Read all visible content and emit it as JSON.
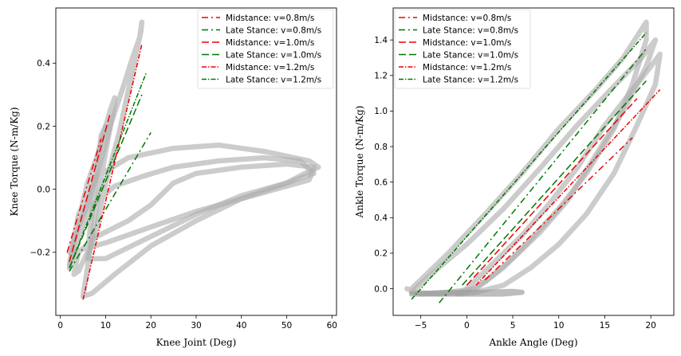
{
  "chart_data": [
    {
      "type": "line",
      "xlabel": "Knee Joint (Deg)",
      "ylabel": "Knee Torque (N-m/Kg)",
      "xlim": [
        -1,
        61
      ],
      "ylim": [
        -0.4,
        0.575
      ],
      "xticks": [
        0,
        10,
        20,
        30,
        40,
        50,
        60
      ],
      "yticks": [
        -0.2,
        0.0,
        0.2,
        0.4
      ],
      "xtick_labels": [
        "0",
        "10",
        "20",
        "30",
        "40",
        "50",
        "60"
      ],
      "ytick_labels": [
        "−0.2",
        "0.0",
        "0.2",
        "0.4"
      ],
      "legend_position": "top-right",
      "grid": false,
      "background_loops": [
        {
          "color": "#b0b0b0",
          "points": [
            [
              2,
              -0.2
            ],
            [
              4,
              -0.12
            ],
            [
              6,
              -0.05
            ],
            [
              8,
              0.05
            ],
            [
              9,
              0.15
            ],
            [
              10,
              0.2
            ],
            [
              9,
              0.17
            ],
            [
              8,
              0.05
            ],
            [
              6,
              -0.2
            ],
            [
              4,
              -0.26
            ],
            [
              3,
              -0.27
            ],
            [
              4,
              -0.2
            ],
            [
              8,
              -0.15
            ],
            [
              15,
              -0.1
            ],
            [
              20,
              -0.05
            ],
            [
              25,
              0.02
            ],
            [
              30,
              0.05
            ],
            [
              40,
              0.07
            ],
            [
              50,
              0.08
            ],
            [
              56,
              0.07
            ],
            [
              55,
              0.03
            ],
            [
              50,
              0.01
            ],
            [
              45,
              -0.01
            ],
            [
              40,
              -0.03
            ],
            [
              30,
              -0.07
            ],
            [
              20,
              -0.12
            ],
            [
              10,
              -0.17
            ],
            [
              5,
              -0.19
            ],
            [
              3,
              -0.2
            ]
          ]
        },
        {
          "color": "#b0b0b0",
          "points": [
            [
              2,
              -0.24
            ],
            [
              4,
              -0.1
            ],
            [
              6,
              0.02
            ],
            [
              8,
              0.1
            ],
            [
              10,
              0.2
            ],
            [
              11,
              0.25
            ],
            [
              12,
              0.29
            ],
            [
              12,
              0.27
            ],
            [
              10,
              0.12
            ],
            [
              8,
              -0.05
            ],
            [
              6,
              -0.25
            ],
            [
              5,
              -0.34
            ],
            [
              7,
              -0.33
            ],
            [
              12,
              -0.27
            ],
            [
              20,
              -0.18
            ],
            [
              30,
              -0.1
            ],
            [
              40,
              -0.03
            ],
            [
              50,
              0.02
            ],
            [
              54,
              0.05
            ],
            [
              57,
              0.07
            ],
            [
              55,
              0.09
            ],
            [
              45,
              0.12
            ],
            [
              35,
              0.14
            ],
            [
              25,
              0.13
            ],
            [
              15,
              0.1
            ],
            [
              8,
              0.04
            ],
            [
              4,
              -0.08
            ],
            [
              2,
              -0.24
            ]
          ]
        },
        {
          "color": "#b0b0b0",
          "points": [
            [
              2,
              -0.25
            ],
            [
              5,
              -0.1
            ],
            [
              8,
              0.04
            ],
            [
              11,
              0.2
            ],
            [
              14,
              0.33
            ],
            [
              16,
              0.42
            ],
            [
              17.5,
              0.48
            ],
            [
              18,
              0.53
            ],
            [
              17.8,
              0.5
            ],
            [
              16,
              0.38
            ],
            [
              13,
              0.18
            ],
            [
              10,
              0.02
            ],
            [
              8,
              -0.12
            ],
            [
              6,
              -0.22
            ],
            [
              10,
              -0.22
            ],
            [
              20,
              -0.15
            ],
            [
              30,
              -0.08
            ],
            [
              40,
              -0.02
            ],
            [
              50,
              0.02
            ],
            [
              56,
              0.05
            ],
            [
              53,
              0.09
            ],
            [
              45,
              0.1
            ],
            [
              35,
              0.09
            ],
            [
              25,
              0.07
            ],
            [
              18,
              0.04
            ],
            [
              12,
              0.01
            ],
            [
              7,
              -0.05
            ],
            [
              3,
              -0.18
            ],
            [
              2,
              -0.25
            ]
          ]
        }
      ],
      "series": [
        {
          "name": "Midstance: v=0.8m/s",
          "color": "#ee0000",
          "dash": "8,4,2,4",
          "x": [
            1.5,
            9
          ],
          "y": [
            -0.2,
            0.16
          ]
        },
        {
          "name": "Late Stance: v=0.8m/s",
          "color": "#007700",
          "dash": "8,4,2,4",
          "x": [
            2,
            20
          ],
          "y": [
            -0.26,
            0.18
          ]
        },
        {
          "name": "Midstance: v=1.0m/s",
          "color": "#ee0000",
          "dash": "9,4",
          "x": [
            2,
            11
          ],
          "y": [
            -0.23,
            0.24
          ]
        },
        {
          "name": "Late Stance: v=1.0m/s",
          "color": "#007700",
          "dash": "9,4",
          "x": [
            2,
            18
          ],
          "y": [
            -0.25,
            0.3
          ]
        },
        {
          "name": "Midstance: v=1.2m/s",
          "color": "#ee0000",
          "dash": "6,2,1.5,2",
          "x": [
            5,
            18
          ],
          "y": [
            -0.35,
            0.46
          ]
        },
        {
          "name": "Late Stance: v=1.2m/s",
          "color": "#007700",
          "dash": "6,2,1.5,2",
          "x": [
            2,
            19
          ],
          "y": [
            -0.25,
            0.37
          ]
        }
      ]
    },
    {
      "type": "line",
      "xlabel": "Ankle Angle (Deg)",
      "ylabel": "Ankle Torque (N-m/Kg)",
      "xlim": [
        -8,
        22.5
      ],
      "ylim": [
        -0.15,
        1.58
      ],
      "xticks": [
        -5,
        0,
        5,
        10,
        15,
        20
      ],
      "yticks": [
        0.0,
        0.2,
        0.4,
        0.6,
        0.8,
        1.0,
        1.2,
        1.4
      ],
      "xtick_labels": [
        "−5",
        "0",
        "5",
        "10",
        "15",
        "20"
      ],
      "ytick_labels": [
        "0.0",
        "0.2",
        "0.4",
        "0.6",
        "0.8",
        "1.0",
        "1.2",
        "1.4"
      ],
      "legend_position": "top-left",
      "grid": false,
      "background_loops": [
        {
          "color": "#b0b0b0",
          "points": [
            [
              -6,
              0
            ],
            [
              -4,
              0.1
            ],
            [
              -2,
              0.2
            ],
            [
              2,
              0.42
            ],
            [
              6,
              0.65
            ],
            [
              10,
              0.9
            ],
            [
              14,
              1.12
            ],
            [
              17,
              1.3
            ],
            [
              19.5,
              1.5
            ],
            [
              19.5,
              1.4
            ],
            [
              18,
              1.15
            ],
            [
              16,
              0.9
            ],
            [
              13,
              0.65
            ],
            [
              10,
              0.45
            ],
            [
              7,
              0.28
            ],
            [
              4,
              0.12
            ],
            [
              1,
              0
            ],
            [
              -2,
              -0.02
            ],
            [
              -5,
              -0.03
            ],
            [
              -6.5,
              0
            ]
          ]
        },
        {
          "color": "#b0b0b0",
          "points": [
            [
              -6,
              -0.02
            ],
            [
              -3,
              0.12
            ],
            [
              0,
              0.25
            ],
            [
              4,
              0.45
            ],
            [
              8,
              0.68
            ],
            [
              12,
              0.92
            ],
            [
              16,
              1.14
            ],
            [
              19,
              1.3
            ],
            [
              20.5,
              1.4
            ],
            [
              19.5,
              1.25
            ],
            [
              17,
              1.0
            ],
            [
              14,
              0.75
            ],
            [
              11,
              0.5
            ],
            [
              8,
              0.32
            ],
            [
              5,
              0.17
            ],
            [
              2,
              0.04
            ],
            [
              0,
              -0.02
            ],
            [
              -3,
              -0.03
            ],
            [
              -6,
              -0.02
            ]
          ]
        },
        {
          "color": "#b0b0b0",
          "points": [
            [
              0,
              0
            ],
            [
              3,
              0.15
            ],
            [
              6,
              0.3
            ],
            [
              9,
              0.48
            ],
            [
              12,
              0.68
            ],
            [
              15,
              0.92
            ],
            [
              18,
              1.12
            ],
            [
              20,
              1.25
            ],
            [
              21,
              1.32
            ],
            [
              20.5,
              1.15
            ],
            [
              18.5,
              0.92
            ],
            [
              16,
              0.65
            ],
            [
              13,
              0.42
            ],
            [
              10,
              0.25
            ],
            [
              7,
              0.12
            ],
            [
              4,
              0.02
            ],
            [
              1,
              -0.02
            ],
            [
              -1,
              -0.03
            ],
            [
              0,
              0
            ]
          ]
        },
        {
          "color": "#9a9a9a",
          "points": [
            [
              -6,
              -0.03
            ],
            [
              -2,
              -0.02
            ],
            [
              2,
              -0.02
            ],
            [
              5,
              -0.015
            ],
            [
              6,
              -0.02
            ],
            [
              4,
              -0.03
            ],
            [
              0,
              -0.03
            ],
            [
              -4,
              -0.03
            ],
            [
              -6,
              -0.03
            ]
          ]
        }
      ],
      "series": [
        {
          "name": "Midstance: v=0.8m/s",
          "color": "#ee0000",
          "dash": "8,4,2,4",
          "x": [
            2,
            18
          ],
          "y": [
            0.05,
            0.85
          ]
        },
        {
          "name": "Late Stance: v=0.8m/s",
          "color": "#007700",
          "dash": "8,4,2,4",
          "x": [
            -3,
            19.5
          ],
          "y": [
            -0.08,
            1.35
          ]
        },
        {
          "name": "Midstance: v=1.0m/s",
          "color": "#ee0000",
          "dash": "9,4",
          "x": [
            0,
            18.5
          ],
          "y": [
            0.02,
            1.07
          ]
        },
        {
          "name": "Late Stance: v=1.0m/s",
          "color": "#007700",
          "dash": "9,4",
          "x": [
            -0.5,
            19.5
          ],
          "y": [
            0.02,
            1.17
          ]
        },
        {
          "name": "Midstance: v=1.2m/s",
          "color": "#ee0000",
          "dash": "6,2,1.5,2",
          "x": [
            1,
            21
          ],
          "y": [
            0.02,
            1.12
          ]
        },
        {
          "name": "Late Stance: v=1.2m/s",
          "color": "#007700",
          "dash": "6,2,1.5,2",
          "x": [
            -6,
            19.5
          ],
          "y": [
            -0.06,
            1.44
          ]
        }
      ]
    }
  ]
}
